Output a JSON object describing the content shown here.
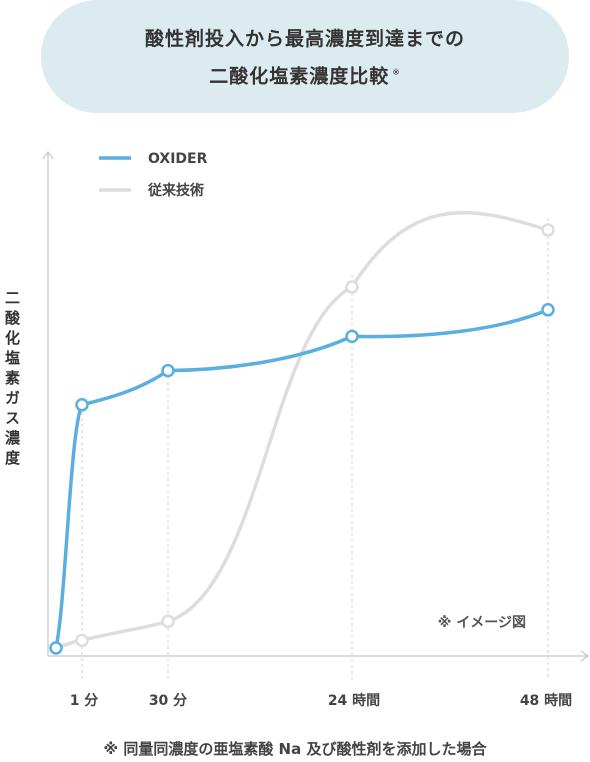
{
  "header": {
    "title_line1": "酸性剤投入から最高濃度到達までの",
    "title_line2": "二酸化塩素濃度比較",
    "title_mark": "※"
  },
  "colors": {
    "oxider": "#5aaee0",
    "conventional": "#dddddd",
    "pill": "#dcebf0",
    "axis": "#d0d0d0"
  },
  "chart_data": {
    "type": "line",
    "ylabel": "二酸化塩素ガス濃度",
    "categories": [
      "1 分",
      "30 分",
      "24 時間",
      "48 時間"
    ],
    "grid": false,
    "legend_position": "top-left",
    "series": [
      {
        "name": "OXIDER",
        "x": [
          0,
          1,
          30,
          24,
          48
        ],
        "values": [
          0,
          64,
          73,
          82,
          89
        ]
      },
      {
        "name": "従来技術",
        "x": [
          0,
          1,
          30,
          24,
          48
        ],
        "values": [
          0,
          2,
          7,
          95,
          110
        ]
      }
    ],
    "annotation": "※ イメージ図"
  },
  "footnote": "※ 同量同濃度の亜塩素酸 Na 及び酸性剤を添加した場合"
}
